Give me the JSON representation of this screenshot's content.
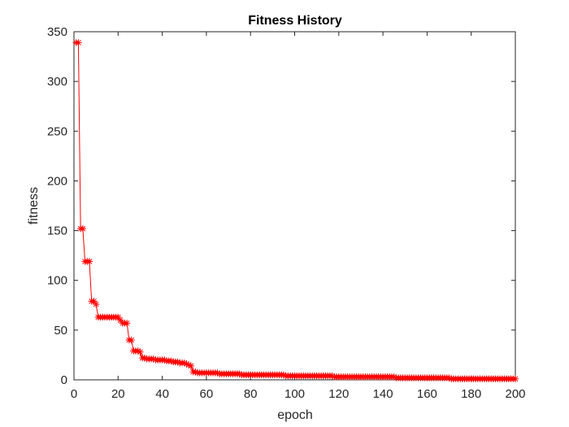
{
  "chart_data": {
    "type": "line",
    "title": "Fitness History",
    "xlabel": "epoch",
    "ylabel": "fitness",
    "xlim": [
      0,
      200
    ],
    "ylim": [
      0,
      350
    ],
    "xticks": [
      0,
      20,
      40,
      60,
      80,
      100,
      120,
      140,
      160,
      180,
      200
    ],
    "yticks": [
      0,
      50,
      100,
      150,
      200,
      250,
      300,
      350
    ],
    "grid": false,
    "line_color": "#ff0000",
    "marker": "asterisk",
    "series": [
      {
        "values": [
          339,
          339,
          152,
          152,
          119,
          119,
          119,
          79,
          79,
          76,
          63,
          63,
          63,
          63,
          63,
          63,
          63,
          63,
          63,
          63,
          60,
          57,
          57,
          57,
          40,
          40,
          29,
          29,
          29,
          28,
          22,
          22,
          21,
          21,
          21,
          21,
          20,
          20,
          20,
          20,
          20,
          19,
          19,
          19,
          18,
          18,
          18,
          17,
          17,
          17,
          16,
          15,
          14,
          8,
          8,
          7,
          7,
          7,
          7,
          7,
          7,
          7,
          7,
          7,
          7,
          6,
          6,
          6,
          6,
          6,
          6,
          6,
          6,
          6,
          6,
          5,
          5,
          5,
          5,
          5,
          5,
          5,
          5,
          5,
          5,
          5,
          5,
          5,
          5,
          5,
          5,
          5,
          5,
          5,
          5,
          4,
          4,
          4,
          4,
          4,
          4,
          4,
          4,
          4,
          4,
          4,
          4,
          4,
          4,
          4,
          4,
          4,
          4,
          4,
          4,
          4,
          4,
          3,
          3,
          3,
          3,
          3,
          3,
          3,
          3,
          3,
          3,
          3,
          3,
          3,
          3,
          3,
          3,
          3,
          3,
          3,
          3,
          3,
          3,
          3,
          3,
          3,
          3,
          3,
          3,
          2,
          2,
          2,
          2,
          2,
          2,
          2,
          2,
          2,
          2,
          2,
          2,
          2,
          2,
          2,
          2,
          2,
          2,
          2,
          2,
          2,
          2,
          2,
          2,
          2,
          1,
          1,
          1,
          1,
          1,
          1,
          1,
          1,
          1,
          1,
          1,
          1,
          1,
          1,
          1,
          1,
          1,
          1,
          1,
          1,
          1,
          1,
          1,
          1,
          1,
          1,
          1,
          1,
          1,
          1
        ]
      }
    ]
  }
}
